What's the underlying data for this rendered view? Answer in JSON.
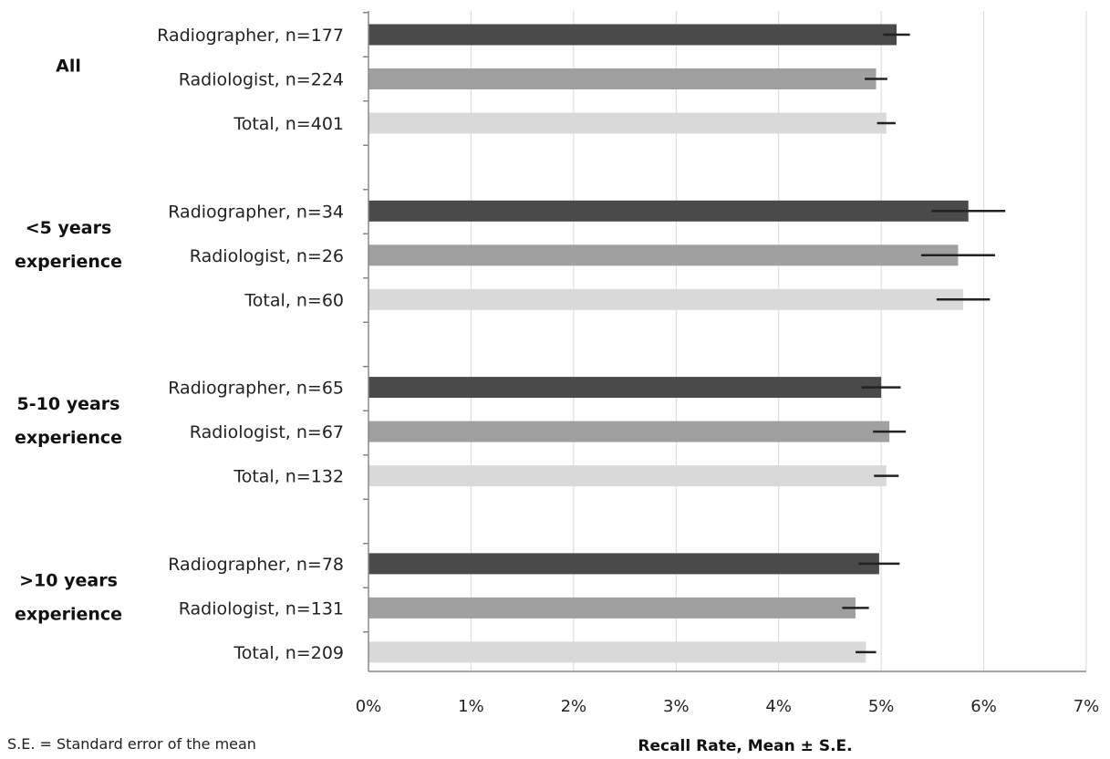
{
  "chart_data": {
    "type": "bar",
    "orientation": "horizontal",
    "xlabel": "Recall Rate, Mean ± S.E.",
    "footnote": "S.E. = Standard error of the mean",
    "xlim": [
      0,
      7
    ],
    "x_unit": "%",
    "x_ticks": [
      "0%",
      "1%",
      "2%",
      "3%",
      "4%",
      "5%",
      "6%",
      "7%"
    ],
    "grid": "vertical",
    "colors": {
      "Radiographer": "#4a4a4a",
      "Radiologist": "#a0a0a0",
      "Total": "#d9d9d9",
      "error_bar": "#222222",
      "grid": "#d9d9d9",
      "axis": "#888888"
    },
    "groups": [
      {
        "label_lines": [
          "All"
        ],
        "bars": [
          {
            "label": "Radiographer, n=177",
            "role": "Radiographer",
            "value": 5.15,
            "se": 0.13
          },
          {
            "label": "Radiologist, n=224",
            "role": "Radiologist",
            "value": 4.95,
            "se": 0.11
          },
          {
            "label": "Total, n=401",
            "role": "Total",
            "value": 5.05,
            "se": 0.09
          }
        ]
      },
      {
        "label_lines": [
          "<5 years",
          "experience"
        ],
        "bars": [
          {
            "label": "Radiographer, n=34",
            "role": "Radiographer",
            "value": 5.85,
            "se": 0.36
          },
          {
            "label": "Radiologist, n=26",
            "role": "Radiologist",
            "value": 5.75,
            "se": 0.36
          },
          {
            "label": "Total, n=60",
            "role": "Total",
            "value": 5.8,
            "se": 0.26
          }
        ]
      },
      {
        "label_lines": [
          "5-10 years",
          "experience"
        ],
        "bars": [
          {
            "label": "Radiographer, n=65",
            "role": "Radiographer",
            "value": 5.0,
            "se": 0.19
          },
          {
            "label": "Radiologist, n=67",
            "role": "Radiologist",
            "value": 5.08,
            "se": 0.16
          },
          {
            "label": "Total, n=132",
            "role": "Total",
            "value": 5.05,
            "se": 0.12
          }
        ]
      },
      {
        "label_lines": [
          ">10 years",
          "experience"
        ],
        "bars": [
          {
            "label": "Radiographer, n=78",
            "role": "Radiographer",
            "value": 4.98,
            "se": 0.2
          },
          {
            "label": "Radiologist, n=131",
            "role": "Radiologist",
            "value": 4.75,
            "se": 0.13
          },
          {
            "label": "Total, n=209",
            "role": "Total",
            "value": 4.85,
            "se": 0.1
          }
        ]
      }
    ]
  }
}
